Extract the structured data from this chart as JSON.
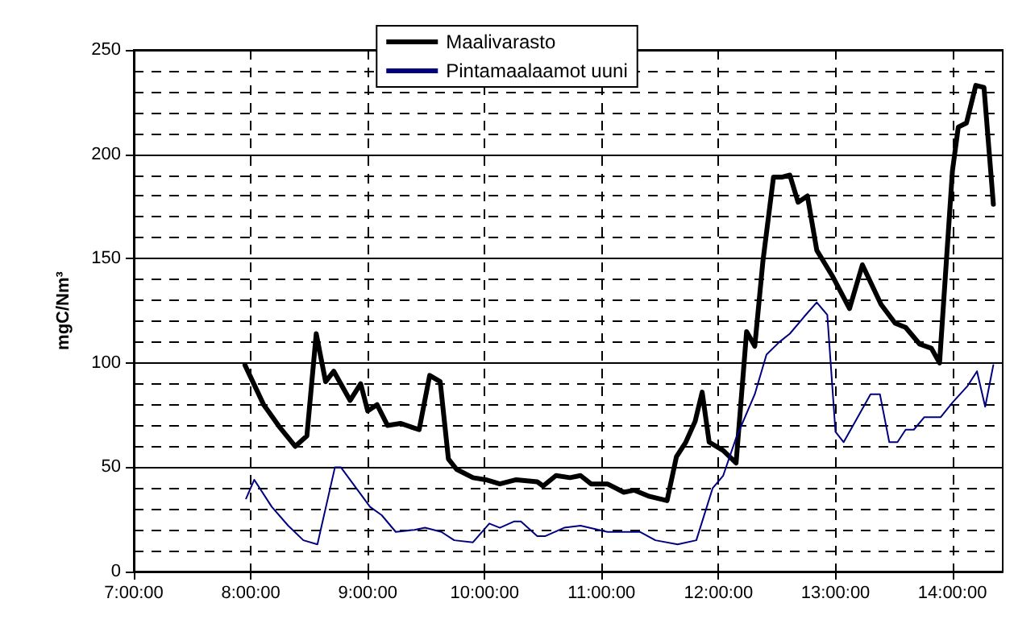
{
  "chart_data": {
    "type": "line",
    "ylabel": "mgC/Nm³",
    "xlim": [
      7,
      14.43
    ],
    "xticks": [
      {
        "value": 7,
        "label": "7:00:00"
      },
      {
        "value": 8,
        "label": "8:00:00"
      },
      {
        "value": 9,
        "label": "9:00:00"
      },
      {
        "value": 10,
        "label": "10:00:00"
      },
      {
        "value": 11,
        "label": "11:00:00"
      },
      {
        "value": 12,
        "label": "12:00:00"
      },
      {
        "value": 13,
        "label": "13:00:00"
      },
      {
        "value": 14,
        "label": "14:00:00"
      }
    ],
    "ylim": [
      0,
      250
    ],
    "yticks": [
      0,
      50,
      100,
      150,
      200,
      250
    ],
    "grid": true,
    "legend": "top",
    "line_style": "solid",
    "series": [
      {
        "name": "Maalivarasto",
        "color": "#000000",
        "x": [
          7.95,
          8.11,
          8.25,
          8.38,
          8.48,
          8.56,
          8.64,
          8.71,
          8.85,
          8.94,
          9.0,
          9.08,
          9.17,
          9.28,
          9.44,
          9.53,
          9.62,
          9.69,
          9.76,
          9.9,
          10.01,
          10.13,
          10.27,
          10.45,
          10.5,
          10.61,
          10.73,
          10.82,
          10.91,
          11.05,
          11.19,
          11.28,
          11.41,
          11.56,
          11.64,
          11.72,
          11.8,
          11.86,
          11.92,
          12.04,
          12.15,
          12.24,
          12.31,
          12.38,
          12.47,
          12.54,
          12.61,
          12.68,
          12.76,
          12.84,
          12.98,
          13.12,
          13.23,
          13.39,
          13.51,
          13.6,
          13.72,
          13.82,
          13.89,
          14.0,
          14.05,
          14.12,
          14.2,
          14.27,
          14.35
        ],
        "values": [
          99,
          80,
          69,
          60,
          65,
          114,
          91,
          96,
          82,
          90,
          77,
          80,
          70,
          71,
          68,
          94,
          91,
          54,
          49,
          45,
          44,
          42,
          44,
          43,
          41,
          46,
          45,
          46,
          42,
          42,
          38,
          39,
          36,
          34,
          55,
          62,
          72,
          86,
          62,
          58,
          52,
          115,
          108,
          149,
          189,
          189,
          190,
          177,
          180,
          154,
          141,
          126,
          147,
          128,
          119,
          117,
          109,
          107,
          100,
          192,
          213,
          215,
          233,
          232,
          176
        ]
      },
      {
        "name": "Pintamaalaamot uuni",
        "color": "#000080",
        "x": [
          7.96,
          8.03,
          8.18,
          8.32,
          8.45,
          8.57,
          8.72,
          8.77,
          9.02,
          9.12,
          9.24,
          9.4,
          9.49,
          9.63,
          9.74,
          9.9,
          10.04,
          10.13,
          10.25,
          10.31,
          10.45,
          10.52,
          10.68,
          10.82,
          11.05,
          11.33,
          11.46,
          11.65,
          11.81,
          11.95,
          12.04,
          12.15,
          12.31,
          12.41,
          12.52,
          12.61,
          12.73,
          12.84,
          12.93,
          13.0,
          13.07,
          13.19,
          13.3,
          13.38,
          13.46,
          13.53,
          13.6,
          13.67,
          13.76,
          13.9,
          14.0,
          14.13,
          14.21,
          14.28,
          14.35
        ],
        "values": [
          35,
          44,
          31,
          22,
          15,
          13,
          50,
          50,
          31,
          27,
          19,
          20,
          21,
          19,
          15,
          14,
          23,
          21,
          24,
          24,
          17,
          17,
          21,
          22,
          19,
          19,
          15,
          13,
          15,
          40,
          46,
          64,
          85,
          104,
          110,
          114,
          122,
          129,
          123,
          67,
          62,
          74,
          85,
          85,
          62,
          62,
          68,
          68,
          74,
          74,
          81,
          89,
          96,
          79,
          99
        ]
      }
    ]
  }
}
